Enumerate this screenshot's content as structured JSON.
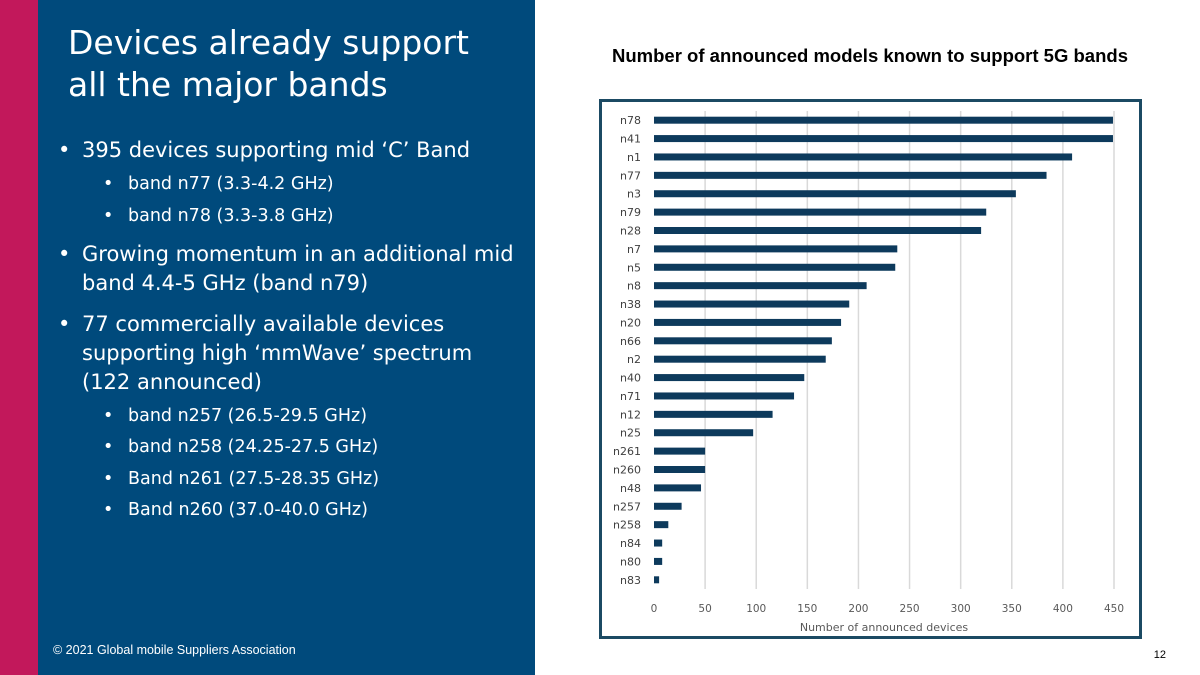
{
  "slide": {
    "title": "Devices already support all the major bands",
    "bullets": [
      {
        "text": "395 devices supporting mid ‘C’ Band",
        "sub": [
          "band n77 (3.3-4.2 GHz)",
          "band n78 (3.3-3.8 GHz)"
        ]
      },
      {
        "text": "Growing momentum in an additional mid band 4.4-5 GHz (band n79)",
        "sub": []
      },
      {
        "text": "77 commercially available devices supporting high ‘mmWave’ spectrum (122 announced)",
        "sub": [
          "band n257 (26.5-29.5 GHz)",
          "band n258 (24.25-27.5 GHz)",
          "Band n261 (27.5-28.35 GHz)",
          "Band n260 (37.0-40.0 GHz)"
        ]
      }
    ],
    "footer": "© 2021 Global mobile Suppliers Association",
    "page_number": "12"
  },
  "colors": {
    "panel": "#004a7c",
    "accent": "#c2185b",
    "bar": "#0d3a5c",
    "grid": "#d9d9d9",
    "frame": "#1b4a63"
  },
  "chart_data": {
    "type": "bar",
    "orientation": "horizontal",
    "title": "Number of announced models known to support 5G bands",
    "xlabel": "Number of announced devices",
    "ylabel": "",
    "xlim": [
      0,
      450
    ],
    "xticks": [
      0,
      50,
      100,
      150,
      200,
      250,
      300,
      350,
      400,
      450
    ],
    "grid": true,
    "categories": [
      "n78",
      "n41",
      "n1",
      "n77",
      "n3",
      "n79",
      "n28",
      "n7",
      "n5",
      "n8",
      "n38",
      "n20",
      "n66",
      "n2",
      "n40",
      "n71",
      "n12",
      "n25",
      "n261",
      "n260",
      "n48",
      "n257",
      "n258",
      "n84",
      "n80",
      "n83"
    ],
    "values": [
      449,
      449,
      409,
      384,
      354,
      325,
      320,
      238,
      236,
      208,
      191,
      183,
      174,
      168,
      147,
      137,
      116,
      97,
      50,
      50,
      46,
      27,
      14,
      8,
      8,
      5
    ]
  }
}
